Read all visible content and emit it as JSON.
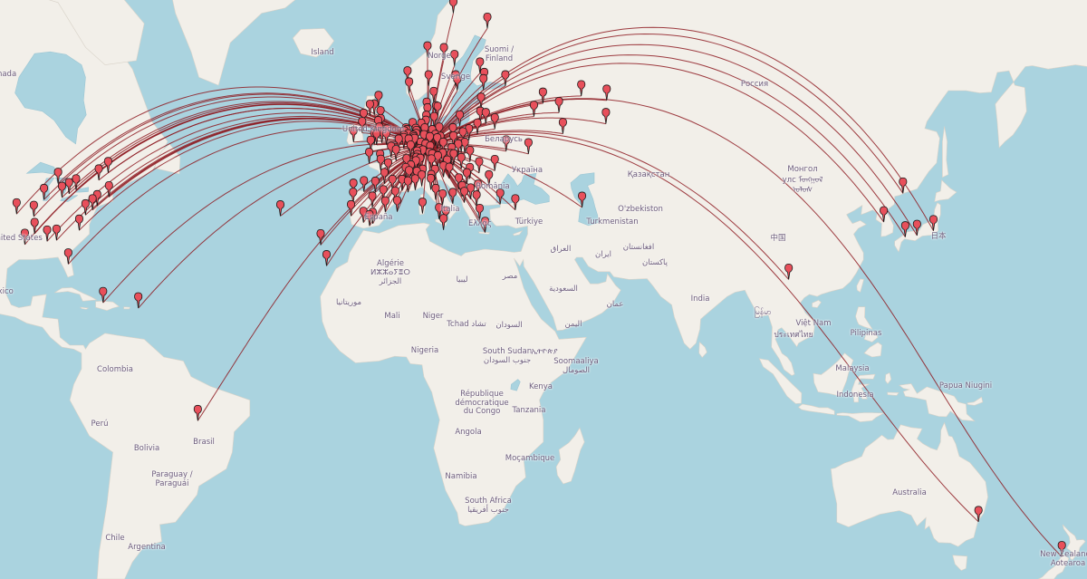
{
  "map": {
    "colors": {
      "ocean": "#aad3df",
      "land": "#f2efe9",
      "border": "#c3b4cc",
      "route": "#8e1b22",
      "marker": "#e8505b",
      "marker_stroke": "#1a1a1a"
    },
    "hub": [
      51.3,
      10.5
    ],
    "markers": [
      [
        39.1,
        -94.6
      ],
      [
        32.8,
        -92.5
      ],
      [
        35.1,
        -90.0
      ],
      [
        38.6,
        -90.2
      ],
      [
        41.9,
        -87.6
      ],
      [
        42.3,
        -83.0
      ],
      [
        43.0,
        -81.2
      ],
      [
        43.7,
        -79.4
      ],
      [
        45.5,
        -73.6
      ],
      [
        46.8,
        -71.2
      ],
      [
        42.4,
        -71.0
      ],
      [
        40.7,
        -74.0
      ],
      [
        39.9,
        -75.2
      ],
      [
        38.9,
        -77.0
      ],
      [
        35.8,
        -78.6
      ],
      [
        33.7,
        -84.4
      ],
      [
        33.5,
        -86.8
      ],
      [
        44.9,
        -84.0
      ],
      [
        28.5,
        -81.4
      ],
      [
        19.5,
        -72.5
      ],
      [
        18.2,
        -63.5
      ],
      [
        -10.2,
        -48.3
      ],
      [
        38.7,
        -27.2
      ],
      [
        32.7,
        -16.9
      ],
      [
        40.4,
        49.9
      ],
      [
        25.0,
        102.7
      ],
      [
        37.5,
        127.0
      ],
      [
        43.1,
        131.9
      ],
      [
        34.4,
        132.5
      ],
      [
        34.7,
        135.5
      ],
      [
        35.7,
        139.7
      ],
      [
        -33.9,
        151.2
      ],
      [
        -41.0,
        172.5
      ],
      [
        58.0,
        56.2
      ],
      [
        58.6,
        49.7
      ],
      [
        54.7,
        56.0
      ],
      [
        53.2,
        45.0
      ],
      [
        55.75,
        37.6
      ],
      [
        57.6,
        39.9
      ],
      [
        56.3,
        44.0
      ],
      [
        59.9,
        30.3
      ],
      [
        60.2,
        24.9
      ],
      [
        61.5,
        23.8
      ],
      [
        50.0,
        36.2
      ],
      [
        50.45,
        30.5
      ],
      [
        53.9,
        27.6
      ],
      [
        56.9,
        24.1
      ],
      [
        54.7,
        25.3
      ],
      [
        59.4,
        24.7
      ],
      [
        54.9,
        23.9
      ],
      [
        68.0,
        17.0
      ],
      [
        66.5,
        25.7
      ],
      [
        63.2,
        14.6
      ],
      [
        59.9,
        10.7
      ],
      [
        59.3,
        18.0
      ],
      [
        59.9,
        17.6
      ],
      [
        57.7,
        12.0
      ],
      [
        55.6,
        13.0
      ],
      [
        60.4,
        5.3
      ],
      [
        63.4,
        10.4
      ],
      [
        58.97,
        5.7
      ],
      [
        62.4,
        17.3
      ],
      [
        55.7,
        12.6
      ],
      [
        56.2,
        10.2
      ],
      [
        55.4,
        10.4
      ],
      [
        51.5,
        -0.1
      ],
      [
        53.5,
        -2.2
      ],
      [
        55.95,
        -3.2
      ],
      [
        55.9,
        -4.3
      ],
      [
        52.5,
        -1.9
      ],
      [
        51.45,
        -2.6
      ],
      [
        54.6,
        -5.9
      ],
      [
        53.35,
        -6.3
      ],
      [
        51.9,
        -8.5
      ],
      [
        51.5,
        -3.2
      ],
      [
        54.98,
        -1.6
      ],
      [
        53.8,
        -1.55
      ],
      [
        57.15,
        -2.1
      ],
      [
        50.4,
        -4.1
      ],
      [
        52.2,
        0.1
      ],
      [
        51.75,
        -1.25
      ],
      [
        48.85,
        2.35
      ],
      [
        45.75,
        4.85
      ],
      [
        43.3,
        5.4
      ],
      [
        43.6,
        1.45
      ],
      [
        44.85,
        -0.6
      ],
      [
        47.2,
        -1.55
      ],
      [
        48.1,
        -1.7
      ],
      [
        50.6,
        3.05
      ],
      [
        48.6,
        7.75
      ],
      [
        43.7,
        7.25
      ],
      [
        43.6,
        3.9
      ],
      [
        48.4,
        -4.5
      ],
      [
        47.3,
        5.05
      ],
      [
        49.4,
        1.1
      ],
      [
        46.6,
        0.35
      ],
      [
        45.2,
        5.7
      ],
      [
        52.37,
        4.9
      ],
      [
        51.9,
        4.5
      ],
      [
        50.85,
        4.35
      ],
      [
        51.2,
        4.4
      ],
      [
        49.6,
        6.1
      ],
      [
        51.44,
        5.5
      ],
      [
        53.2,
        6.6
      ],
      [
        52.1,
        5.1
      ],
      [
        50.6,
        5.6
      ],
      [
        52.5,
        13.4
      ],
      [
        53.55,
        10.0
      ],
      [
        48.15,
        11.6
      ],
      [
        50.94,
        6.96
      ],
      [
        50.1,
        8.7
      ],
      [
        48.8,
        9.2
      ],
      [
        51.05,
        13.7
      ],
      [
        51.34,
        12.4
      ],
      [
        52.37,
        9.7
      ],
      [
        53.1,
        8.8
      ],
      [
        49.45,
        11.1
      ],
      [
        51.2,
        6.8
      ],
      [
        51.5,
        7.5
      ],
      [
        54.3,
        10.1
      ],
      [
        54.1,
        12.1
      ],
      [
        48.0,
        7.85
      ],
      [
        51.96,
        7.6
      ],
      [
        51.3,
        9.5
      ],
      [
        50.98,
        11.0
      ],
      [
        52.1,
        11.6
      ],
      [
        49.0,
        8.4
      ],
      [
        50.7,
        7.1
      ],
      [
        49.8,
        9.9
      ],
      [
        48.4,
        10.9
      ],
      [
        52.3,
        7.4
      ],
      [
        50.8,
        12.9
      ],
      [
        47.37,
        8.54
      ],
      [
        46.2,
        6.15
      ],
      [
        46.95,
        7.45
      ],
      [
        47.55,
        7.6
      ],
      [
        48.2,
        16.37
      ],
      [
        47.07,
        15.44
      ],
      [
        47.8,
        13.05
      ],
      [
        47.26,
        11.4
      ],
      [
        48.3,
        14.3
      ],
      [
        50.08,
        14.42
      ],
      [
        49.2,
        16.6
      ],
      [
        52.23,
        21.0
      ],
      [
        50.06,
        19.94
      ],
      [
        54.35,
        18.65
      ],
      [
        51.1,
        17.03
      ],
      [
        52.4,
        16.9
      ],
      [
        51.76,
        19.46
      ],
      [
        50.26,
        19.02
      ],
      [
        53.13,
        23.16
      ],
      [
        49.8,
        18.25
      ],
      [
        47.5,
        19.04
      ],
      [
        48.15,
        17.1
      ],
      [
        48.7,
        21.26
      ],
      [
        46.05,
        14.5
      ],
      [
        45.8,
        15.98
      ],
      [
        44.8,
        20.46
      ],
      [
        43.86,
        18.41
      ],
      [
        42.7,
        23.32
      ],
      [
        44.43,
        26.1
      ],
      [
        46.77,
        23.6
      ],
      [
        47.16,
        27.6
      ],
      [
        45.75,
        21.23
      ],
      [
        41.33,
        19.82
      ],
      [
        42.0,
        21.43
      ],
      [
        42.44,
        19.26
      ],
      [
        41.9,
        12.5
      ],
      [
        45.46,
        9.19
      ],
      [
        40.85,
        14.27
      ],
      [
        38.12,
        13.36
      ],
      [
        41.12,
        16.87
      ],
      [
        37.5,
        15.09
      ],
      [
        45.07,
        7.69
      ],
      [
        45.44,
        12.32
      ],
      [
        43.77,
        11.25
      ],
      [
        44.49,
        11.34
      ],
      [
        44.4,
        8.93
      ],
      [
        39.22,
        9.12
      ],
      [
        35.9,
        14.5
      ],
      [
        37.98,
        23.73
      ],
      [
        40.64,
        22.94
      ],
      [
        35.34,
        25.13
      ],
      [
        41.0,
        28.98
      ],
      [
        39.9,
        32.85
      ],
      [
        40.42,
        -3.7
      ],
      [
        41.39,
        2.17
      ],
      [
        37.39,
        -5.98
      ],
      [
        36.72,
        -4.42
      ],
      [
        39.47,
        -0.38
      ],
      [
        38.72,
        -9.14
      ],
      [
        41.15,
        -8.61
      ],
      [
        43.26,
        -2.93
      ],
      [
        42.88,
        -8.54
      ],
      [
        37.18,
        -3.6
      ],
      [
        41.65,
        -0.88
      ],
      [
        43.36,
        -5.85
      ],
      [
        39.57,
        2.65
      ],
      [
        28.1,
        -15.4
      ]
    ]
  },
  "labels": {
    "canada": "Canada",
    "united_states": "United States",
    "mexico": "Mexico",
    "island": "Island",
    "norge": "Norge",
    "sverige": "Sverige",
    "suomi_1": "Suomi /",
    "suomi_2": "Finland",
    "uk": "United Kingdom",
    "belarus": "Беларусь",
    "ukraine": "Україна",
    "romania": "România",
    "espana": "España",
    "italia": "Italia",
    "ellas": "Ελλάς",
    "turkiye": "Türkiye",
    "algerie_1": "Algérie",
    "algerie_2": "ⵍⵣⵣⴰⵢⴻⵔ",
    "algerie_3": "الجزائر",
    "libya": "ليبيا",
    "egypt": "مصر",
    "mauritania": "موريتانيا",
    "mali": "Mali",
    "niger": "Niger",
    "tchad": "Tchad تشاد",
    "sudan": "السودان",
    "nigeria": "Nigeria",
    "south_sudan_1": "South Sudan",
    "south_sudan_2": "جنوب السودان",
    "ethiopia": "ኢትዮጵያ",
    "somalia_1": "Soomaaliya",
    "somalia_2": "الصومال",
    "drc_1": "République",
    "drc_2": "démocratique",
    "drc_3": "du Congo",
    "kenya": "Kenya",
    "tanzania": "Tanzania",
    "angola": "Angola",
    "mocambique": "Moçambique",
    "namibia": "Namibia",
    "south_africa_1": "South Africa",
    "south_africa_2": "جنوب أفريقيا",
    "colombia": "Colombia",
    "peru": "Perú",
    "brasil": "Brasil",
    "bolivia": "Bolivia",
    "paraguay_1": "Paraguay /",
    "paraguay_2": "Paraguái",
    "chile": "Chile",
    "argentina": "Argentina",
    "russia": "Россия",
    "kazakhstan": "Қазақстан",
    "mongolia_1": "Монгол",
    "mongolia_2": "улс ᠮᠣᠩᠭᠣᠯ",
    "mongolia_3": "ᠤᠯᠤᠰ",
    "uzbekistan": "O'zbekiston",
    "turkmenistan": "Turkmenistan",
    "iraq": "العراق",
    "iran": "ایران",
    "afghanistan": "افغانستان",
    "pakistan": "پاکستان",
    "saudi": "السعودية",
    "oman": "عمان",
    "yemen": "اليمن",
    "india": "India",
    "china": "中国",
    "myanmar": "မြန်မာ",
    "vietnam": "Việt Nam",
    "thailand": "ประเทศไทย",
    "philippines": "Pilipinas",
    "malaysia": "Malaysia",
    "indonesia": "Indonesia",
    "png": "Papua Niugini",
    "australia": "Australia",
    "japan": "日本",
    "nz_1": "New Zealand",
    "nz_2": "Aotearoa"
  }
}
